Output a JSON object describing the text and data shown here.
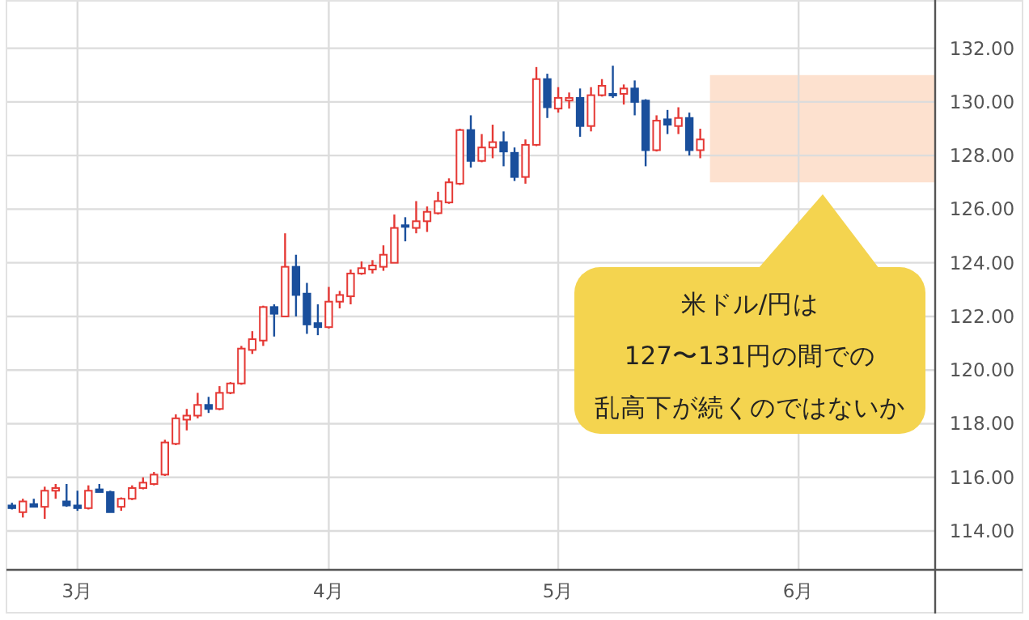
{
  "chart_data": {
    "type": "candlestick",
    "categories": [
      null,
      null,
      null,
      null,
      null,
      null,
      "3月",
      null,
      null,
      null,
      null,
      null,
      null,
      null,
      null,
      null,
      null,
      null,
      null,
      null,
      null,
      null,
      null,
      null,
      null,
      null,
      null,
      null,
      null,
      "4月",
      null,
      null,
      null,
      null,
      null,
      null,
      null,
      null,
      null,
      null,
      null,
      null,
      null,
      null,
      null,
      null,
      null,
      null,
      null,
      null,
      "5月",
      null,
      null,
      null,
      null,
      null,
      null,
      null,
      null,
      null,
      null,
      null,
      null,
      null,
      null,
      null,
      null,
      null,
      null,
      null,
      null,
      null,
      "6月",
      null,
      null,
      null,
      null,
      null,
      null,
      null,
      null,
      null,
      null,
      null,
      null
    ],
    "ohlc": [
      [
        114.95,
        115.05,
        114.8,
        114.85
      ],
      [
        114.7,
        115.2,
        114.5,
        115.1
      ],
      [
        115.0,
        115.2,
        114.9,
        114.9
      ],
      [
        114.9,
        115.65,
        114.45,
        115.5
      ],
      [
        115.5,
        115.75,
        115.2,
        115.6
      ],
      [
        115.1,
        115.75,
        114.9,
        114.95
      ],
      [
        114.95,
        115.5,
        114.75,
        114.85
      ],
      [
        114.85,
        115.7,
        114.8,
        115.5
      ],
      [
        115.55,
        115.75,
        115.45,
        115.45
      ],
      [
        115.45,
        115.5,
        114.7,
        114.7
      ],
      [
        114.9,
        115.25,
        114.75,
        115.2
      ],
      [
        115.2,
        115.7,
        115.15,
        115.6
      ],
      [
        115.6,
        116.0,
        115.55,
        115.8
      ],
      [
        115.75,
        116.2,
        115.7,
        116.1
      ],
      [
        116.1,
        117.4,
        116.05,
        117.3
      ],
      [
        117.25,
        118.35,
        117.2,
        118.2
      ],
      [
        118.15,
        118.55,
        117.75,
        118.3
      ],
      [
        118.3,
        119.15,
        118.2,
        118.7
      ],
      [
        118.7,
        119.0,
        118.4,
        118.55
      ],
      [
        118.55,
        119.4,
        118.5,
        119.15
      ],
      [
        119.15,
        119.55,
        119.1,
        119.5
      ],
      [
        119.5,
        120.9,
        119.45,
        120.8
      ],
      [
        120.75,
        121.45,
        120.6,
        121.15
      ],
      [
        121.1,
        122.4,
        120.9,
        122.35
      ],
      [
        122.35,
        122.45,
        121.25,
        122.1
      ],
      [
        122.0,
        125.1,
        122.0,
        123.85
      ],
      [
        123.85,
        124.3,
        122.0,
        122.8
      ],
      [
        122.85,
        123.25,
        121.35,
        121.7
      ],
      [
        121.75,
        122.45,
        121.3,
        121.6
      ],
      [
        121.6,
        123.1,
        121.55,
        122.55
      ],
      [
        122.55,
        122.95,
        122.3,
        122.8
      ],
      [
        122.75,
        123.75,
        122.45,
        123.6
      ],
      [
        123.6,
        124.05,
        123.55,
        123.8
      ],
      [
        123.75,
        124.1,
        123.6,
        123.9
      ],
      [
        123.85,
        124.65,
        123.7,
        124.3
      ],
      [
        124.0,
        125.8,
        124.0,
        125.3
      ],
      [
        125.4,
        125.7,
        124.8,
        125.35
      ],
      [
        125.3,
        126.3,
        125.1,
        125.55
      ],
      [
        125.55,
        126.1,
        125.15,
        125.9
      ],
      [
        125.85,
        126.65,
        125.8,
        126.3
      ],
      [
        126.25,
        127.15,
        126.2,
        127.0
      ],
      [
        126.95,
        129.0,
        126.9,
        128.95
      ],
      [
        128.95,
        129.5,
        127.55,
        127.8
      ],
      [
        127.8,
        128.8,
        127.75,
        128.3
      ],
      [
        128.3,
        129.15,
        127.9,
        128.5
      ],
      [
        128.5,
        128.9,
        127.6,
        128.15
      ],
      [
        128.1,
        128.3,
        127.05,
        127.2
      ],
      [
        127.2,
        128.6,
        126.95,
        128.4
      ],
      [
        128.4,
        131.3,
        128.35,
        130.85
      ],
      [
        130.85,
        131.05,
        129.4,
        129.8
      ],
      [
        129.75,
        130.55,
        129.6,
        130.15
      ],
      [
        130.05,
        130.35,
        129.75,
        130.15
      ],
      [
        130.15,
        130.5,
        128.7,
        129.1
      ],
      [
        129.1,
        130.55,
        128.9,
        130.25
      ],
      [
        130.25,
        130.85,
        130.2,
        130.6
      ],
      [
        130.3,
        131.35,
        130.15,
        130.25
      ],
      [
        130.3,
        130.65,
        129.9,
        130.5
      ],
      [
        130.5,
        130.8,
        129.5,
        130.0
      ],
      [
        130.05,
        130.1,
        127.6,
        128.2
      ],
      [
        128.2,
        129.5,
        128.15,
        129.3
      ],
      [
        129.35,
        129.7,
        128.8,
        129.15
      ],
      [
        129.1,
        129.8,
        128.8,
        129.4
      ],
      [
        129.4,
        129.6,
        128.0,
        128.2
      ],
      [
        128.2,
        129.0,
        127.9,
        128.6
      ],
      null,
      null,
      null,
      null,
      null,
      null,
      null,
      null,
      null,
      null,
      null,
      null,
      null,
      null,
      null,
      null,
      null,
      null,
      null,
      null,
      null
    ],
    "colors": [
      "#1a4f9c",
      "#e53935",
      "#1a4f9c",
      "#e53935",
      "#e53935",
      "#1a4f9c",
      "#1a4f9c",
      "#e53935",
      "#1a4f9c",
      "#1a4f9c",
      "#e53935",
      "#e53935",
      "#e53935",
      "#e53935",
      "#e53935",
      "#e53935",
      "#e53935",
      "#e53935",
      "#1a4f9c",
      "#e53935",
      "#e53935",
      "#e53935",
      "#e53935",
      "#e53935",
      "#1a4f9c",
      "#e53935",
      "#1a4f9c",
      "#1a4f9c",
      "#1a4f9c",
      "#e53935",
      "#e53935",
      "#e53935",
      "#e53935",
      "#e53935",
      "#e53935",
      "#e53935",
      "#1a4f9c",
      "#e53935",
      "#e53935",
      "#e53935",
      "#e53935",
      "#e53935",
      "#1a4f9c",
      "#e53935",
      "#e53935",
      "#1a4f9c",
      "#1a4f9c",
      "#e53935",
      "#e53935",
      "#1a4f9c",
      "#e53935",
      "#e53935",
      "#1a4f9c",
      "#e53935",
      "#e53935",
      "#1a4f9c",
      "#e53935",
      "#1a4f9c",
      "#1a4f9c",
      "#e53935",
      "#1a4f9c",
      "#e53935",
      "#1a4f9c",
      "#e53935",
      null,
      null,
      null,
      null,
      null,
      null,
      null,
      null,
      null,
      null,
      null,
      null,
      null,
      null,
      null,
      null,
      null,
      null,
      null,
      null,
      null
    ],
    "ylim": [
      112.55,
      133.8
    ],
    "yticks": [
      {
        "value": 114,
        "label": "114.00"
      },
      {
        "value": 116,
        "label": "116.00"
      },
      {
        "value": 118,
        "label": "118.00"
      },
      {
        "value": 120,
        "label": "120.00"
      },
      {
        "value": 122,
        "label": "122.00"
      },
      {
        "value": 124,
        "label": "124.00"
      },
      {
        "value": 126,
        "label": "126.00"
      },
      {
        "value": 128,
        "label": "128.00"
      },
      {
        "value": 130,
        "label": "130.00"
      },
      {
        "value": 132,
        "label": "132.00"
      }
    ],
    "grid": true,
    "bands": [
      {
        "axis": "y",
        "from": 127,
        "to": 131,
        "color": "#fde1cf"
      }
    ],
    "annotations": [
      "米ドル/円は",
      "127〜131円の間での",
      "乱高下が続くのではないか"
    ]
  }
}
